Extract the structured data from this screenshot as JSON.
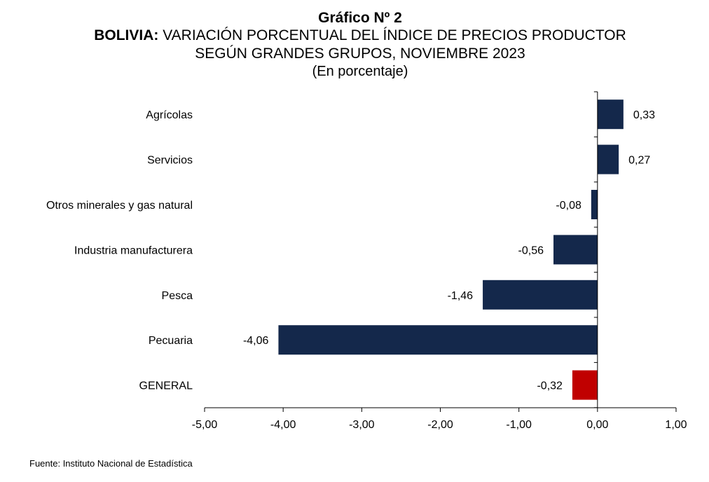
{
  "title_line1": "Gráfico Nº 2",
  "title_line2_bold": "BOLIVIA:",
  "title_line2_rest": " VARIACIÓN PORCENTUAL DEL ÍNDICE DE PRECIOS PRODUCTOR",
  "title_line3": "SEGÚN GRANDES GRUPOS, NOVIEMBRE 2023",
  "title_line4": "(En porcentaje)",
  "source": "Fuente: Instituto Nacional de Estadística",
  "chart_data": {
    "type": "bar",
    "orientation": "horizontal",
    "categories": [
      "Agrícolas",
      "Servicios",
      "Otros minerales y gas natural",
      "Industria manufacturera",
      "Pesca",
      "Pecuaria",
      "GENERAL"
    ],
    "values": [
      0.33,
      0.27,
      -0.08,
      -0.56,
      -1.46,
      -4.06,
      -0.32
    ],
    "data_labels": [
      "0,33",
      "0,27",
      "-0,08",
      "-0,56",
      "-1,46",
      "-4,06",
      "-0,32"
    ],
    "xlim": [
      -5,
      1
    ],
    "xticks": [
      -5,
      -4,
      -3,
      -2,
      -1,
      0,
      1
    ],
    "xtick_labels": [
      "-5,00",
      "-4,00",
      "-3,00",
      "-2,00",
      "-1,00",
      "0,00",
      "1,00"
    ],
    "colors": [
      "#14284b",
      "#14284b",
      "#14284b",
      "#14284b",
      "#14284b",
      "#14284b",
      "#c00000"
    ],
    "grid": false,
    "legend": "none"
  }
}
